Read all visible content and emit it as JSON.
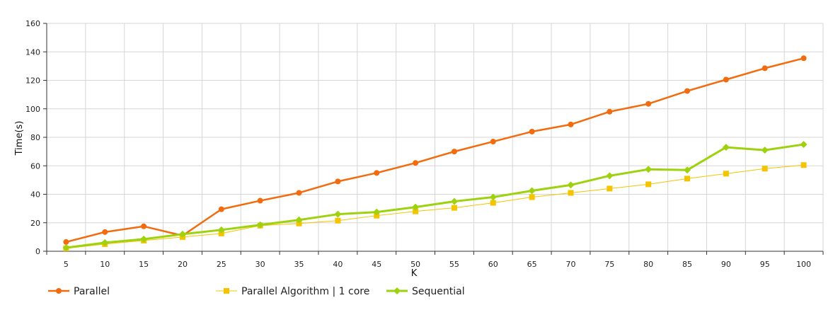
{
  "chart_data": {
    "type": "line",
    "title": "",
    "xlabel": "K",
    "ylabel": "Time(s)",
    "x": [
      5,
      10,
      15,
      20,
      25,
      30,
      35,
      40,
      45,
      50,
      55,
      60,
      65,
      70,
      75,
      80,
      85,
      90,
      95,
      100
    ],
    "ylim": [
      0,
      160
    ],
    "yticks": [
      0,
      20,
      40,
      60,
      80,
      100,
      120,
      140,
      160
    ],
    "grid": true,
    "legend_position": "bottom",
    "series": [
      {
        "name": "Parallel",
        "color": "#f26b0f",
        "marker": "circle",
        "values": [
          6.5,
          13.5,
          17.5,
          11,
          29.5,
          35.5,
          41,
          49,
          55,
          62,
          70,
          77,
          84,
          89,
          98,
          103.5,
          112.5,
          120.5,
          128.5,
          135.5
        ]
      },
      {
        "name": "Parallel Algorithm | 1 core",
        "color": "#f5c400",
        "marker": "square",
        "values": [
          2,
          5,
          7.5,
          10,
          12.5,
          18,
          19.5,
          21.5,
          25,
          28,
          30.5,
          34,
          38,
          41,
          44,
          47,
          51,
          54.5,
          58,
          60.5
        ]
      },
      {
        "name": "Sequential",
        "color": "#9ed20e",
        "marker": "diamond",
        "values": [
          2.5,
          6,
          8.5,
          12,
          15,
          18.5,
          22,
          26,
          27.5,
          31,
          35,
          38,
          42.5,
          46.5,
          53,
          57.5,
          57,
          73,
          71,
          75
        ]
      }
    ]
  }
}
